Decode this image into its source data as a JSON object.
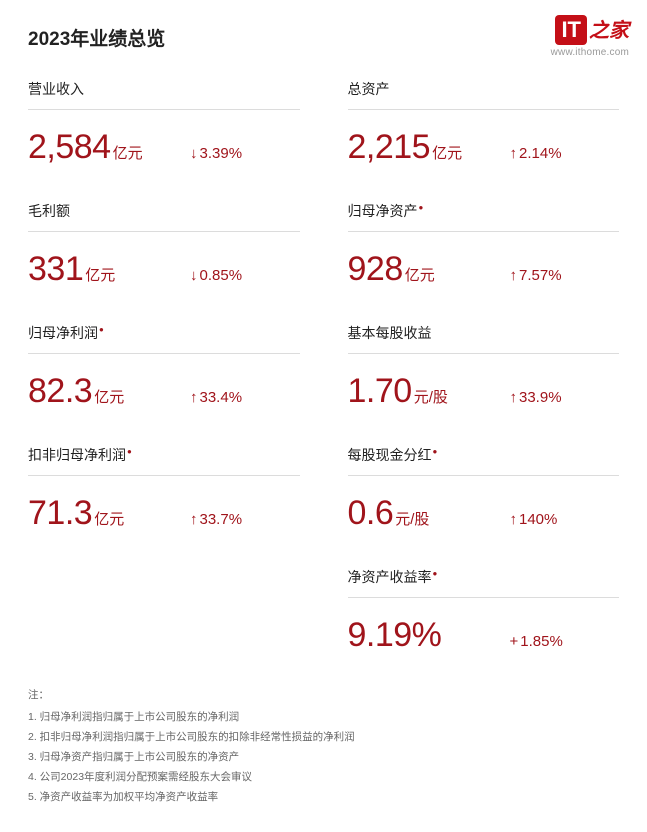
{
  "title": "2023年业绩总览",
  "watermark": {
    "it": "IT",
    "zh": "之家",
    "url": "www.ithome.com"
  },
  "colors": {
    "accent": "#a0141b",
    "text": "#222222",
    "divider": "#dcdcdc",
    "note": "#666666"
  },
  "left": [
    {
      "label": "营业收入",
      "sup": false,
      "num": "2,584",
      "unit": "亿元",
      "arrow": "down",
      "change": "3.39%"
    },
    {
      "label": "毛利额",
      "sup": false,
      "num": "331",
      "unit": "亿元",
      "arrow": "down",
      "change": "0.85%"
    },
    {
      "label": "归母净利润",
      "sup": true,
      "num": "82.3",
      "unit": "亿元",
      "arrow": "up",
      "change": "33.4%"
    },
    {
      "label": "扣非归母净利润",
      "sup": true,
      "num": "71.3",
      "unit": "亿元",
      "arrow": "up",
      "change": "33.7%"
    }
  ],
  "right": [
    {
      "label": "总资产",
      "sup": false,
      "num": "2,215",
      "unit": "亿元",
      "arrow": "up",
      "change": "2.14%"
    },
    {
      "label": "归母净资产",
      "sup": true,
      "num": "928",
      "unit": "亿元",
      "arrow": "up",
      "change": "7.57%"
    },
    {
      "label": "基本每股收益",
      "sup": false,
      "num": "1.70",
      "unit": "元/股",
      "arrow": "up",
      "change": "33.9%"
    },
    {
      "label": "每股现金分红",
      "sup": true,
      "num": "0.6",
      "unit": "元/股",
      "arrow": "up",
      "change": "140%"
    },
    {
      "label": "净资产收益率",
      "sup": true,
      "num": "9.19%",
      "unit": "",
      "arrow": "plus",
      "change": "1.85%"
    }
  ],
  "notes": {
    "head": "注：",
    "items": [
      "1. 归母净利润指归属于上市公司股东的净利润",
      "2. 扣非归母净利润指归属于上市公司股东的扣除非经常性损益的净利润",
      "3. 归母净资产指归属于上市公司股东的净资产",
      "4. 公司2023年度利润分配预案需经股东大会审议",
      "5. 净资产收益率为加权平均净资产收益率"
    ]
  }
}
